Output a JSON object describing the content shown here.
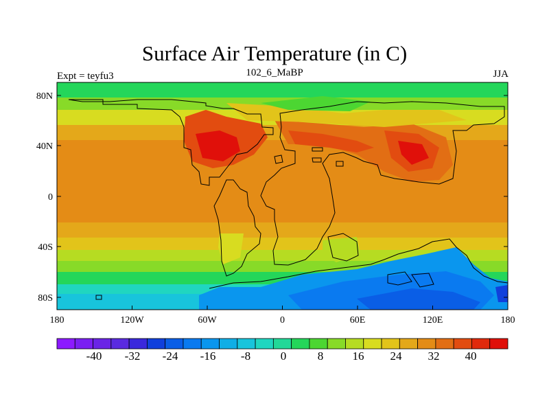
{
  "title": "Surface Air Temperature (in C)",
  "subtitle": "102_6_MaBP",
  "left_label": "Expt = teyfu3",
  "right_label": "JJA",
  "map": {
    "lon_ticks": [
      "180",
      "120W",
      "60W",
      "0",
      "60E",
      "120E",
      "180"
    ],
    "lat_ticks": [
      "80N",
      "40N",
      "0",
      "40S",
      "80S"
    ]
  },
  "colorbar": {
    "colors": [
      "#8c1aff",
      "#7a1ff2",
      "#6a24e6",
      "#5a2ae0",
      "#3a28dc",
      "#1040dc",
      "#0a5ee6",
      "#0a7af0",
      "#0a96ee",
      "#10aee6",
      "#18c4dc",
      "#20d6c0",
      "#22d898",
      "#24d65a",
      "#4cd632",
      "#88da28",
      "#b6dc22",
      "#d8dc20",
      "#e2c41a",
      "#e4a81a",
      "#e48c16",
      "#e26e14",
      "#e24c10",
      "#e02a0c",
      "#e0100a"
    ],
    "labels": [
      "-40",
      "-32",
      "-24",
      "-16",
      "-8",
      "0",
      "8",
      "16",
      "24",
      "32",
      "40"
    ]
  },
  "colors": {
    "cold": "#1040dc",
    "cool": "#18c4dc",
    "temperate": "#24d65a",
    "mild": "#b6dc22",
    "warm": "#e4a81a",
    "hot": "#e24c10",
    "hottest": "#e0100a",
    "ocean_tropics": "#e48c16",
    "coast_outline": "#000000"
  }
}
